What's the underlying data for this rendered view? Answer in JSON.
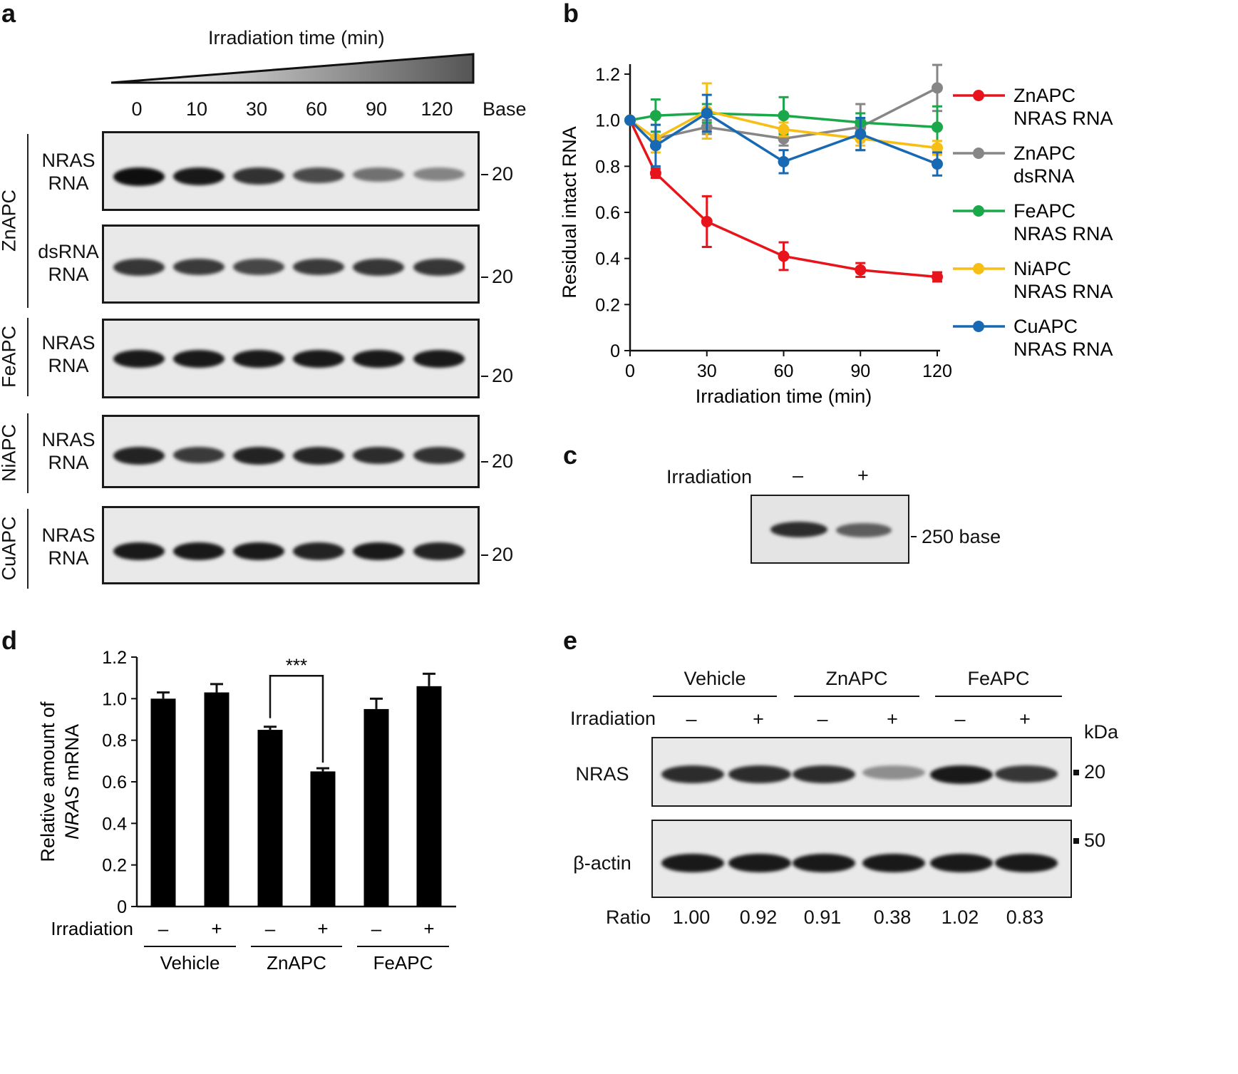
{
  "panels": {
    "a": "a",
    "b": "b",
    "c": "c",
    "d": "d",
    "e": "e"
  },
  "panel_a": {
    "title": "Irradiation time (min)",
    "times": [
      "0",
      "10",
      "30",
      "60",
      "90",
      "120"
    ],
    "base_label": "Base",
    "marker": "20",
    "rows": [
      {
        "group": "ZnAPC",
        "line1": "NRAS",
        "line2": "RNA",
        "intensity": [
          1.0,
          0.95,
          0.82,
          0.7,
          0.5,
          0.4
        ]
      },
      {
        "group": "",
        "line1": "dsRNA",
        "line2": "RNA",
        "intensity": [
          0.8,
          0.78,
          0.72,
          0.78,
          0.8,
          0.8
        ]
      },
      {
        "group": "FeAPC",
        "line1": "NRAS",
        "line2": "RNA",
        "intensity": [
          0.95,
          0.95,
          0.95,
          0.95,
          0.95,
          0.95
        ]
      },
      {
        "group": "NiAPC",
        "line1": "NRAS",
        "line2": "RNA",
        "intensity": [
          0.9,
          0.78,
          0.9,
          0.88,
          0.85,
          0.82
        ]
      },
      {
        "group": "CuAPC",
        "line1": "NRAS",
        "line2": "RNA",
        "intensity": [
          0.95,
          0.95,
          0.95,
          0.9,
          0.95,
          0.9
        ]
      }
    ]
  },
  "chart_data": [
    {
      "panel": "b",
      "type": "line",
      "title": "",
      "xlabel": "Irradiation time (min)",
      "ylabel": "Residual intact RNA",
      "xlim": [
        0,
        120
      ],
      "ylim": [
        0,
        1.2
      ],
      "xticks": [
        "0",
        "30",
        "60",
        "90",
        "120"
      ],
      "yticks": [
        "0",
        "0.2",
        "0.4",
        "0.6",
        "0.8",
        "1.0",
        "1.2"
      ],
      "x": [
        0,
        10,
        30,
        60,
        90,
        120
      ],
      "series": [
        {
          "name": "ZnAPC NRAS RNA",
          "line1": "ZnAPC",
          "line2": "NRAS RNA",
          "color": "#e8141b",
          "values": [
            1.0,
            0.77,
            0.56,
            0.41,
            0.35,
            0.32
          ],
          "errors": [
            0,
            0.02,
            0.11,
            0.06,
            0.03,
            0.02
          ]
        },
        {
          "name": "ZnAPC dsRNA",
          "line1": "ZnAPC",
          "line2": "dsRNA",
          "color": "#868686",
          "values": [
            1.0,
            0.92,
            0.97,
            0.92,
            0.97,
            1.14
          ],
          "errors": [
            0,
            0.03,
            0.03,
            0.03,
            0.1,
            0.1
          ]
        },
        {
          "name": "FeAPC NRAS RNA",
          "line1": "FeAPC",
          "line2": "NRAS RNA",
          "color": "#1aa84a",
          "values": [
            1.0,
            1.02,
            1.03,
            1.02,
            0.99,
            0.97
          ],
          "errors": [
            0,
            0.07,
            0.04,
            0.08,
            0.04,
            0.09
          ]
        },
        {
          "name": "NiAPC NRAS RNA",
          "line1": "NiAPC",
          "line2": "NRAS RNA",
          "color": "#f7be16",
          "values": [
            1.0,
            0.92,
            1.04,
            0.96,
            0.92,
            0.88
          ],
          "errors": [
            0,
            0.06,
            0.12,
            0.03,
            0.03,
            0.03
          ]
        },
        {
          "name": "CuAPC NRAS RNA",
          "line1": "CuAPC",
          "line2": "NRAS RNA",
          "color": "#1869b4",
          "values": [
            1.0,
            0.89,
            1.03,
            0.82,
            0.94,
            0.81
          ],
          "errors": [
            0,
            0.09,
            0.08,
            0.05,
            0.07,
            0.05
          ]
        }
      ]
    },
    {
      "panel": "d",
      "type": "bar",
      "title": "",
      "ylabel_line1": "Relative amount of",
      "ylabel_italic": "NRAS",
      "ylabel_rest": " mRNA",
      "ylim": [
        0,
        1.2
      ],
      "yticks": [
        "0",
        "0.2",
        "0.4",
        "0.6",
        "0.8",
        "1.0",
        "1.2"
      ],
      "row_label": "Irradiation",
      "categories": [
        "Vehicle –",
        "Vehicle +",
        "ZnAPC –",
        "ZnAPC +",
        "FeAPC –",
        "FeAPC +"
      ],
      "signs": [
        "–",
        "+",
        "–",
        "+",
        "–",
        "+"
      ],
      "groups": [
        "Vehicle",
        "ZnAPC",
        "FeAPC"
      ],
      "values": [
        1.0,
        1.03,
        0.85,
        0.65,
        0.95,
        1.06
      ],
      "errors": [
        0.03,
        0.04,
        0.015,
        0.015,
        0.05,
        0.06
      ],
      "significance": "***",
      "color": "#000000"
    }
  ],
  "panel_c": {
    "row_label": "Irradiation",
    "signs": [
      "–",
      "+"
    ],
    "marker": "250 base",
    "intensity": [
      0.85,
      0.6
    ]
  },
  "panel_e": {
    "groups": [
      "Vehicle",
      "ZnAPC",
      "FeAPC"
    ],
    "row_label": "Irradiation",
    "signs": [
      "–",
      "+",
      "–",
      "+",
      "–",
      "+"
    ],
    "unit": "kDa",
    "rows": [
      {
        "label": "NRAS",
        "marker": "20",
        "intensity": [
          0.85,
          0.85,
          0.85,
          0.35,
          0.95,
          0.8
        ]
      },
      {
        "label": "β-actin",
        "marker": "50",
        "intensity": [
          0.95,
          0.95,
          0.95,
          0.95,
          0.95,
          0.95
        ]
      }
    ],
    "ratio_label": "Ratio",
    "ratios": [
      "1.00",
      "0.92",
      "0.91",
      "0.38",
      "1.02",
      "0.83"
    ]
  }
}
